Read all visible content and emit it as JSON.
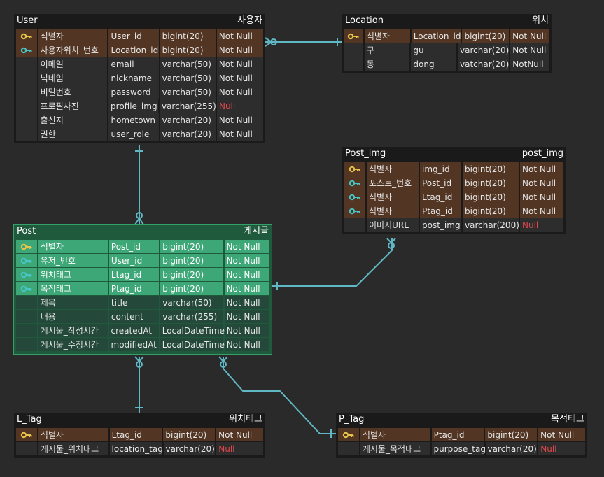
{
  "colors": {
    "background": "#2a2a2a",
    "connector": "#5fb8c4",
    "primary_key_row": "#523522",
    "post_theme": "#1f5a3c",
    "post_key_row": "#3ea777",
    "null_red": "#e0474c",
    "key_gold": "#e8c44a",
    "key_teal": "#46c6c6"
  },
  "entities": {
    "user": {
      "name": "User",
      "label": "사용자",
      "rows": [
        {
          "key": "key-gold",
          "col": "식별자",
          "field": "User_id",
          "type": "bigint(20)",
          "nullable": "Not Null"
        },
        {
          "key": "key-teal",
          "col": "사용자위치_번호",
          "field": "Location_id",
          "type": "bigint(20)",
          "nullable": "Not Null"
        },
        {
          "key": "",
          "col": "이메일",
          "field": "email",
          "type": "varchar(50)",
          "nullable": "Not Null"
        },
        {
          "key": "",
          "col": "닉네임",
          "field": "nickname",
          "type": "varchar(50)",
          "nullable": "Not Null"
        },
        {
          "key": "",
          "col": "비밀번호",
          "field": "password",
          "type": "varchar(50)",
          "nullable": "Not Null"
        },
        {
          "key": "",
          "col": "프로필사진",
          "field": "profile_img",
          "type": "varchar(255)",
          "nullable": "Null"
        },
        {
          "key": "",
          "col": "출신지",
          "field": "hometown",
          "type": "varchar(20)",
          "nullable": "Not Null"
        },
        {
          "key": "",
          "col": "권한",
          "field": "user_role",
          "type": "varchar(20)",
          "nullable": "Not Null"
        }
      ]
    },
    "location": {
      "name": "Location",
      "label": "위치",
      "rows": [
        {
          "key": "key-gold",
          "col": "식별자",
          "field": "Location_id",
          "type": "bigint(20)",
          "nullable": "Not Null"
        },
        {
          "key": "",
          "col": "구",
          "field": "gu",
          "type": "varchar(20)",
          "nullable": "Not Null"
        },
        {
          "key": "",
          "col": "동",
          "field": "dong",
          "type": "vatchar(20)",
          "nullable": "NotNull"
        }
      ]
    },
    "post_img": {
      "name": "Post_img",
      "label": "post_img",
      "rows": [
        {
          "key": "key-gold",
          "col": "식별자",
          "field": "img_id",
          "type": "bigint(20)",
          "nullable": "Not Null"
        },
        {
          "key": "key-teal",
          "col": "포스트_번호",
          "field": "Post_id",
          "type": "bigint(20)",
          "nullable": "Not Null"
        },
        {
          "key": "key-teal",
          "col": "식별자",
          "field": "Ltag_id",
          "type": "bigint(20)",
          "nullable": "Not Null"
        },
        {
          "key": "key-teal",
          "col": "식별자",
          "field": "Ptag_id",
          "type": "bigint(20)",
          "nullable": "Not Null"
        },
        {
          "key": "",
          "col": "이미지URL",
          "field": "post_img",
          "type": "varchar(200)",
          "nullable": "Null"
        }
      ]
    },
    "post": {
      "name": "Post",
      "label": "게시글",
      "rows": [
        {
          "key": "key-gold",
          "col": "식별자",
          "field": "Post_id",
          "type": "bigint(20)",
          "nullable": "Not Null"
        },
        {
          "key": "key-teal",
          "col": "유저_번호",
          "field": "User_id",
          "type": "bigint(20)",
          "nullable": "Not Null"
        },
        {
          "key": "key-teal",
          "col": "위치태그",
          "field": "Ltag_id",
          "type": "bigint(20)",
          "nullable": "Not Null"
        },
        {
          "key": "key-teal",
          "col": "목적태그",
          "field": "Ptag_id",
          "type": "bigint(20)",
          "nullable": "Not Null"
        },
        {
          "key": "",
          "col": "제목",
          "field": "title",
          "type": "varchar(50)",
          "nullable": "Not Null"
        },
        {
          "key": "",
          "col": "내용",
          "field": "content",
          "type": "varchar(255)",
          "nullable": "Not Null"
        },
        {
          "key": "",
          "col": "게시물_작성시간",
          "field": "createdAt",
          "type": "LocalDateTime",
          "nullable": "Not Null"
        },
        {
          "key": "",
          "col": "게시물_수정시간",
          "field": "modifiedAt",
          "type": "LocalDateTime",
          "nullable": "Not Null"
        }
      ]
    },
    "l_tag": {
      "name": "L_Tag",
      "label": "위치태그",
      "rows": [
        {
          "key": "key-gold",
          "col": "식별자",
          "field": "Ltag_id",
          "type": "bigint(20)",
          "nullable": "Not Null"
        },
        {
          "key": "",
          "col": "게시물_위치태그",
          "field": "location_tag",
          "type": "varchar(20)",
          "nullable": "Null"
        }
      ]
    },
    "p_tag": {
      "name": "P_Tag",
      "label": "목적태그",
      "rows": [
        {
          "key": "key-gold",
          "col": "식별자",
          "field": "Ptag_id",
          "type": "bigint(20)",
          "nullable": "Not Null"
        },
        {
          "key": "",
          "col": "게시물_목적태그",
          "field": "purpose_tag",
          "type": "varchar(20)",
          "nullable": "Null"
        }
      ]
    }
  }
}
